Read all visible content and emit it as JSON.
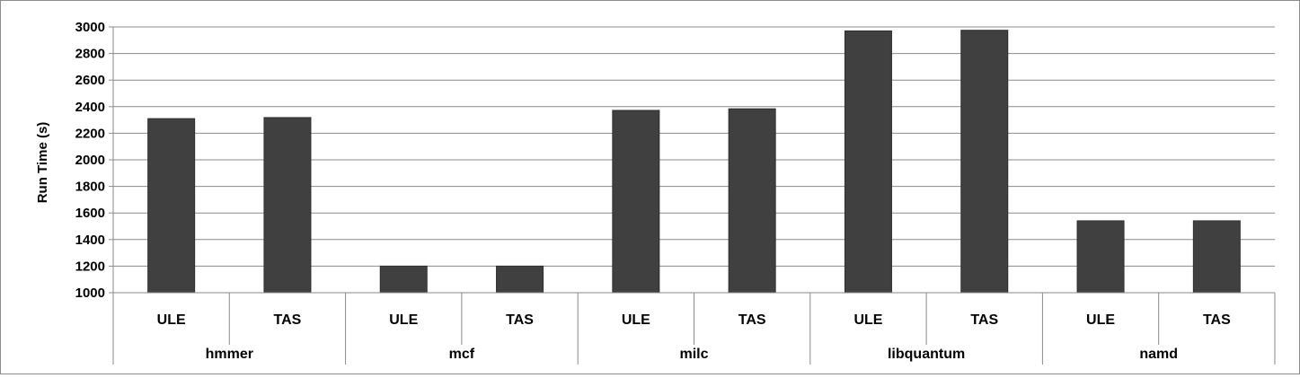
{
  "chart_data": {
    "type": "bar",
    "title": "",
    "xlabel": "",
    "ylabel": "Run Time (s)",
    "ylim": [
      1000,
      3000
    ],
    "yticks": [
      1000,
      1200,
      1400,
      1600,
      1800,
      2000,
      2200,
      2400,
      2600,
      2800,
      3000
    ],
    "grid": true,
    "legend": "none",
    "bar_color": "#404040",
    "groups": [
      {
        "name": "hmmer",
        "categories": [
          "ULE",
          "TAS"
        ],
        "values": [
          2310,
          2318
        ]
      },
      {
        "name": "mcf",
        "categories": [
          "ULE",
          "TAS"
        ],
        "values": [
          1200,
          1200
        ]
      },
      {
        "name": "milc",
        "categories": [
          "ULE",
          "TAS"
        ],
        "values": [
          2372,
          2384
        ]
      },
      {
        "name": "libquantum",
        "categories": [
          "ULE",
          "TAS"
        ],
        "values": [
          2970,
          2975
        ]
      },
      {
        "name": "namd",
        "categories": [
          "ULE",
          "TAS"
        ],
        "values": [
          1541,
          1541
        ]
      }
    ]
  }
}
